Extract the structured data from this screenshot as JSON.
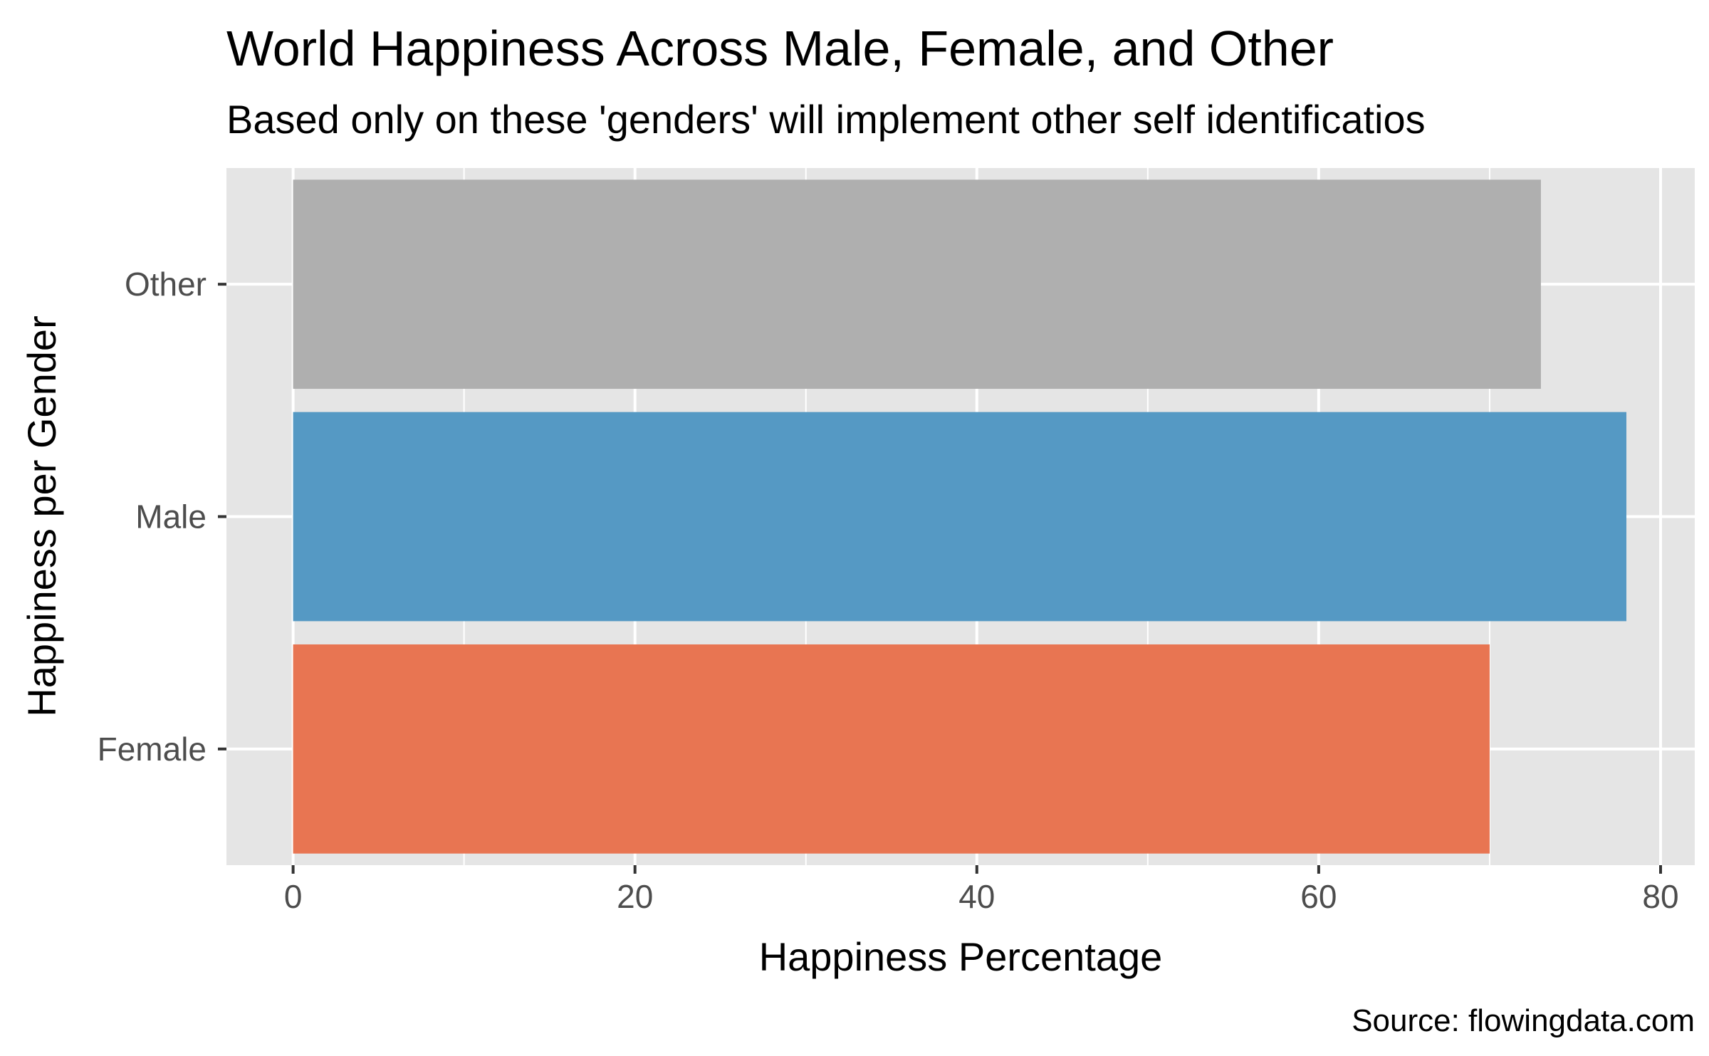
{
  "chart_data": {
    "type": "bar",
    "orientation": "horizontal",
    "title": "World Happiness Across Male, Female, and Other",
    "subtitle": "Based only on these 'genders' will implement other self identificatios",
    "xlabel": "Happiness Percentage",
    "ylabel": "Happiness per Gender",
    "caption": "Source: flowingdata.com",
    "categories": [
      "Female",
      "Male",
      "Other"
    ],
    "values": [
      70,
      78,
      73
    ],
    "colors": [
      "#E87552",
      "#5599C4",
      "#AFAFAF"
    ],
    "xlim": [
      -3.9,
      82
    ],
    "xticks": [
      0,
      20,
      40,
      60,
      80
    ],
    "xtick_labels": [
      "0",
      "20",
      "40",
      "60",
      "80"
    ],
    "grid": true,
    "panel_background": "#E5E5E5",
    "grid_color": "#FFFFFF",
    "legend": "none"
  }
}
